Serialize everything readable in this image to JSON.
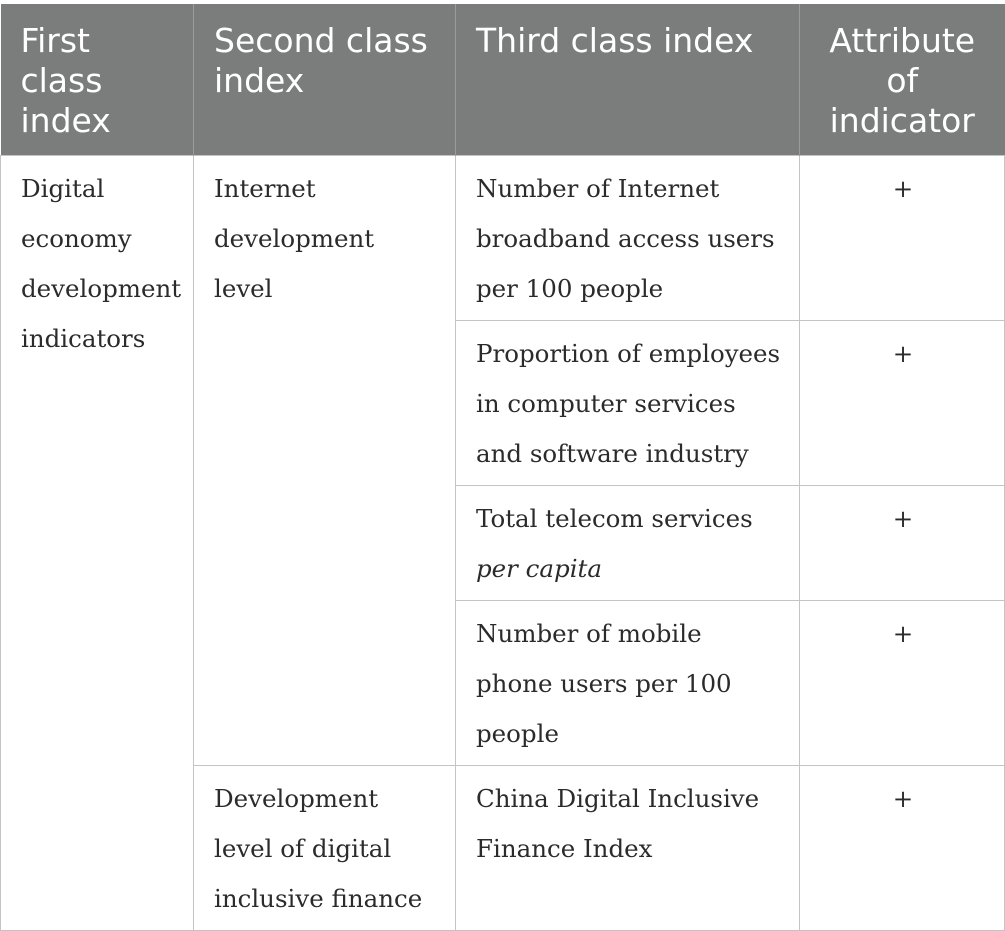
{
  "header": {
    "col1": "First class index",
    "col2": "Second class index",
    "col3": "Third class index",
    "col4": "Attribute of indicator"
  },
  "first_class": "Digital economy development indicators",
  "groups": [
    {
      "second_class": "Internet development level",
      "rows": [
        {
          "third_class": "Number of Internet broadband access users per 100 people",
          "attribute": "+"
        },
        {
          "third_class": "Proportion of employees in computer services and software industry",
          "attribute": "+"
        },
        {
          "third_class": "Total telecom services ",
          "third_class_italic": "per capita",
          "attribute": "+"
        },
        {
          "third_class": "Number of mobile phone users per 100 people",
          "attribute": "+"
        }
      ]
    },
    {
      "second_class": "Development level of digital inclusive finance",
      "rows": [
        {
          "third_class": "China Digital Inclusive Finance Index",
          "attribute": "+"
        }
      ]
    }
  ]
}
